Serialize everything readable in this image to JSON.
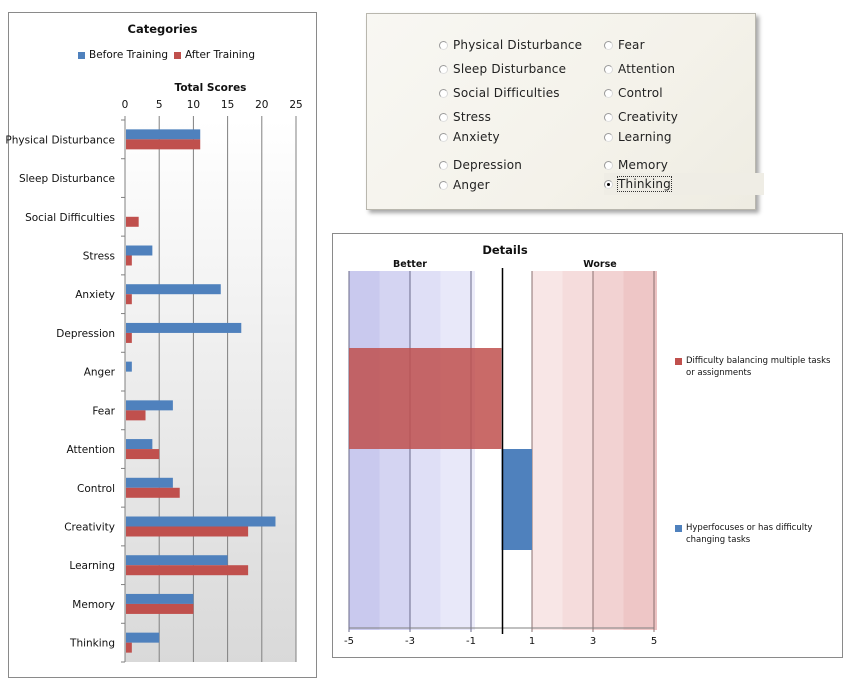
{
  "categories_chart": {
    "title": "Categories",
    "axis_title": "Total Scores",
    "legend": [
      {
        "name": "Before Training",
        "color": "#4f81bd"
      },
      {
        "name": "After Training",
        "color": "#c0504d"
      }
    ]
  },
  "radio_panel": {
    "options": [
      {
        "label": "Physical Disturbance",
        "checked": false
      },
      {
        "label": "Sleep Disturbance",
        "checked": false
      },
      {
        "label": "Social Difficulties",
        "checked": false
      },
      {
        "label": "Stress",
        "checked": false
      },
      {
        "label": "Anxiety",
        "checked": false
      },
      {
        "label": "Depression",
        "checked": false
      },
      {
        "label": "Anger",
        "checked": false
      },
      {
        "label": "Fear",
        "checked": false
      },
      {
        "label": "Attention",
        "checked": false
      },
      {
        "label": "Control",
        "checked": false
      },
      {
        "label": "Creativity",
        "checked": false
      },
      {
        "label": "Learning",
        "checked": false
      },
      {
        "label": "Memory",
        "checked": false
      },
      {
        "label": "Thinking",
        "checked": true
      }
    ],
    "selected": "Thinking"
  },
  "details_chart": {
    "title": "Details",
    "better_label": "Better",
    "worse_label": "Worse",
    "legend": [
      {
        "name": "Difficulty balancing multiple tasks or assignments",
        "color": "#c0504d"
      },
      {
        "name": "Hyperfocuses or has difficulty changing tasks",
        "color": "#4f81bd"
      }
    ]
  },
  "chart_data": [
    {
      "type": "bar",
      "orientation": "horizontal",
      "title": "Categories",
      "xlabel": "Total Scores",
      "ylabel": "",
      "xlim": [
        0,
        25
      ],
      "xticks": [
        0,
        5,
        10,
        15,
        20,
        25
      ],
      "grid": true,
      "legend_position": "top",
      "categories": [
        "Physical Disturbance",
        "Sleep Disturbance",
        "Social Difficulties",
        "Stress",
        "Anxiety",
        "Depression",
        "Anger",
        "Fear",
        "Attention",
        "Control",
        "Creativity",
        "Learning",
        "Memory",
        "Thinking"
      ],
      "series": [
        {
          "name": "Before Training",
          "color": "#4f81bd",
          "values": [
            11,
            0,
            0,
            4,
            14,
            17,
            1,
            7,
            4,
            7,
            22,
            15,
            10,
            5
          ]
        },
        {
          "name": "After Training",
          "color": "#c0504d",
          "values": [
            11,
            0,
            2,
            1,
            1,
            1,
            0,
            3,
            5,
            8,
            18,
            18,
            10,
            1
          ]
        }
      ]
    },
    {
      "type": "bar",
      "orientation": "horizontal",
      "title": "Details",
      "xlabel": "",
      "ylabel": "",
      "xlim": [
        -5,
        5
      ],
      "xticks": [
        -5,
        -3,
        -1,
        1,
        3,
        5
      ],
      "zone_labels": {
        "negative": "Better",
        "positive": "Worse"
      },
      "grid": true,
      "legend_position": "right",
      "categories": [
        "Difficulty balancing multiple tasks or assignments",
        "Hyperfocuses or has difficulty changing tasks"
      ],
      "series": [
        {
          "name": "Difficulty balancing multiple tasks or assignments",
          "color": "#c0504d",
          "values": [
            -5
          ]
        },
        {
          "name": "Hyperfocuses or has difficulty changing tasks",
          "color": "#4f81bd",
          "values": [
            1
          ]
        }
      ]
    }
  ]
}
